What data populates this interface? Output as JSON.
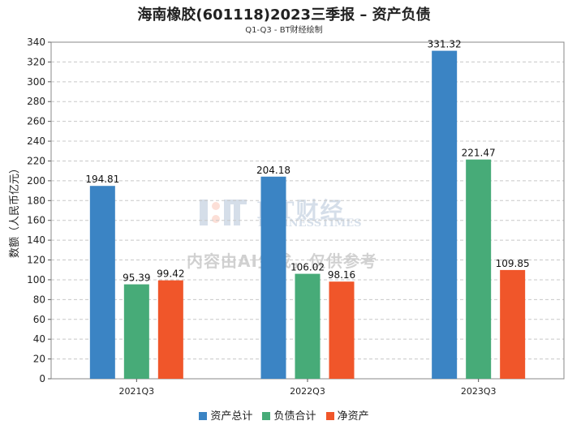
{
  "header": {
    "title": "海南橡胶(601118)2023三季报 – 资产负债",
    "subtitle": "Q1-Q3 - BT财经绘制"
  },
  "watermark": {
    "brand": "BT财经",
    "brand_sub": "BUSINESSTIMES",
    "notice": "内容由AI生成，仅供参考"
  },
  "colors": {
    "series": [
      "#3b84c4",
      "#47ab78",
      "#f0562a"
    ],
    "grid": "#c8c8c8",
    "axis": "#555555"
  },
  "chart_data": {
    "type": "bar",
    "title": "海南橡胶(601118)2023三季报 – 资产负债",
    "subtitle": "Q1-Q3 - BT财经绘制",
    "xlabel": "",
    "ylabel": "数额（人民币亿元）",
    "ylim": [
      0,
      340
    ],
    "ytick_step": 20,
    "grid": true,
    "legend_position": "bottom-center",
    "categories": [
      "2021Q3",
      "2022Q3",
      "2023Q3"
    ],
    "series": [
      {
        "name": "资产总计",
        "values": [
          194.81,
          204.18,
          331.32
        ]
      },
      {
        "name": "负债合计",
        "values": [
          95.39,
          106.02,
          221.47
        ]
      },
      {
        "name": "净资产",
        "values": [
          99.42,
          98.16,
          109.85
        ]
      }
    ]
  }
}
